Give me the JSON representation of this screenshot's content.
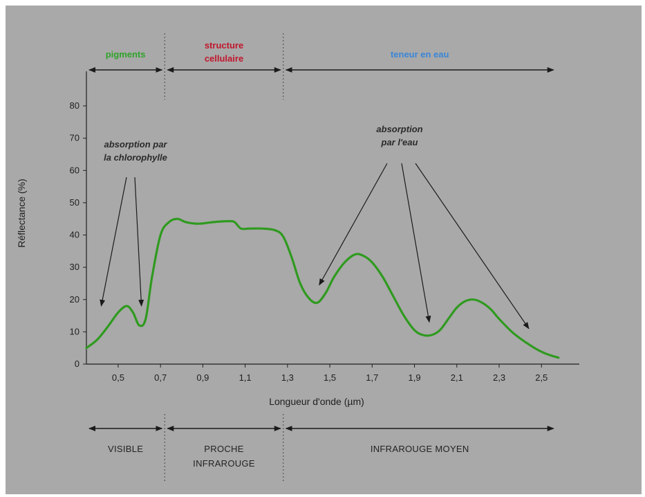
{
  "chart_data": {
    "type": "line",
    "xlabel": "Longueur d'onde (µm)",
    "ylabel": "Réflectance (%)",
    "xlim": [
      0.35,
      2.62
    ],
    "ylim": [
      0,
      80
    ],
    "x_ticks": [
      "0,5",
      "0,7",
      "0,9",
      "1,1",
      "1,3",
      "1,5",
      "1,7",
      "1,9",
      "2,1",
      "2,3",
      "2,5"
    ],
    "x_tick_values": [
      0.5,
      0.7,
      0.9,
      1.1,
      1.3,
      1.5,
      1.7,
      1.9,
      2.1,
      2.3,
      2.5
    ],
    "y_ticks": [
      0,
      10,
      20,
      30,
      40,
      50,
      60,
      70,
      80
    ],
    "series": [
      {
        "color": "#2f9a1f",
        "x": [
          0.35,
          0.4,
          0.45,
          0.5,
          0.54,
          0.57,
          0.6,
          0.63,
          0.66,
          0.7,
          0.74,
          0.78,
          0.82,
          0.88,
          0.95,
          1.02,
          1.05,
          1.08,
          1.12,
          1.18,
          1.24,
          1.28,
          1.32,
          1.36,
          1.4,
          1.44,
          1.48,
          1.52,
          1.57,
          1.62,
          1.66,
          1.7,
          1.75,
          1.8,
          1.85,
          1.9,
          1.94,
          1.98,
          2.02,
          2.06,
          2.1,
          2.14,
          2.18,
          2.22,
          2.26,
          2.3,
          2.36,
          2.42,
          2.48,
          2.53,
          2.58
        ],
        "y": [
          5,
          7.5,
          11.5,
          16,
          18,
          16,
          12,
          14,
          27,
          40,
          44,
          45,
          44,
          43.5,
          44,
          44.3,
          44,
          42,
          42,
          42,
          41.5,
          39.5,
          33,
          25,
          20.5,
          19,
          22,
          27,
          31.5,
          34,
          33.5,
          31.5,
          27,
          21,
          15,
          10.5,
          9,
          9,
          10.5,
          14,
          17.5,
          19.5,
          20,
          19,
          17,
          14,
          10,
          7,
          4.5,
          3,
          2
        ]
      }
    ],
    "annotations": [
      {
        "text_lines": [
          "absorption par",
          "la chlorophylle"
        ],
        "points_to": [
          [
            0.42,
            18
          ],
          [
            0.61,
            18
          ]
        ]
      },
      {
        "text_lines": [
          "absorption",
          "par l'eau"
        ],
        "points_to": [
          [
            1.45,
            24.5
          ],
          [
            1.97,
            13
          ],
          [
            2.44,
            11
          ]
        ]
      }
    ],
    "top_regions": [
      {
        "lines": [
          "pigments"
        ],
        "color": "#2fa32a",
        "from": 0.35,
        "to": 0.72
      },
      {
        "lines": [
          "structure",
          "cellulaire"
        ],
        "color": "#c0162c",
        "from": 0.72,
        "to": 1.28
      },
      {
        "lines": [
          "teneur en eau"
        ],
        "color": "#3a86d8",
        "from": 1.28,
        "to": 2.57
      }
    ],
    "bottom_regions": [
      {
        "lines": [
          "VISIBLE"
        ],
        "from": 0.35,
        "to": 0.72
      },
      {
        "lines": [
          "PROCHE",
          "INFRAROUGE"
        ],
        "from": 0.72,
        "to": 1.28
      },
      {
        "lines": [
          "INFRAROUGE MOYEN"
        ],
        "from": 1.28,
        "to": 2.57
      }
    ],
    "dividers": [
      0.72,
      1.28
    ],
    "grid": false
  }
}
